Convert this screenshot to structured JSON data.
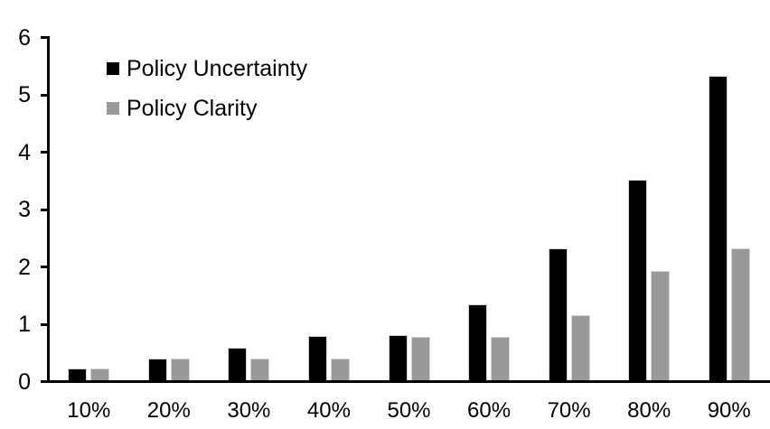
{
  "chart_data": {
    "type": "bar",
    "title": "",
    "xlabel": "",
    "ylabel": "",
    "categories": [
      "10%",
      "20%",
      "30%",
      "40%",
      "50%",
      "60%",
      "70%",
      "80%",
      "90%"
    ],
    "series": [
      {
        "name": "Policy Uncertainty",
        "color": "#000000",
        "values": [
          0.2,
          0.38,
          0.57,
          0.77,
          0.79,
          1.33,
          2.3,
          3.5,
          5.3
        ]
      },
      {
        "name": "Policy Clarity",
        "color": "#999999",
        "values": [
          0.2,
          0.38,
          0.38,
          0.38,
          0.76,
          0.76,
          1.13,
          1.9,
          2.3
        ]
      }
    ],
    "ylim": [
      0,
      6
    ],
    "yticks": [
      0,
      1,
      2,
      3,
      4,
      5,
      6
    ],
    "grid": false,
    "legend_position": "top-left",
    "axis_color": "#000000",
    "background_color": "#ffffff"
  }
}
